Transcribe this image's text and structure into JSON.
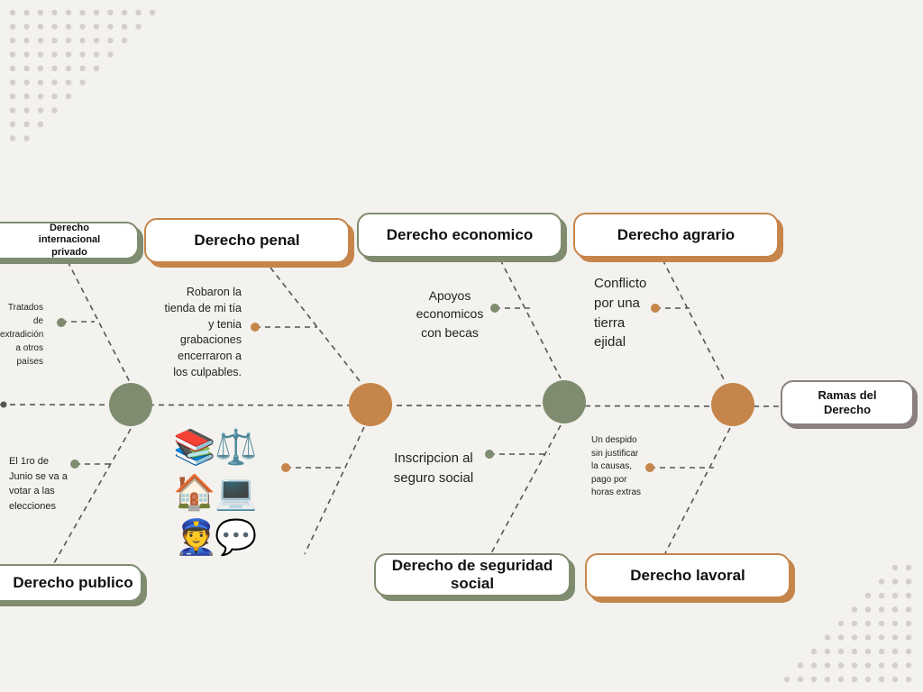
{
  "spine_label": "Ramas del Derecho",
  "branches": {
    "internacional": "Derecho internacional privado",
    "penal": "Derecho penal",
    "economico": "Derecho economico",
    "agrario": "Derecho agrario",
    "publico": "Derecho publico",
    "seguridad": "Derecho de seguridad social",
    "lavoral": "Derecho lavoral"
  },
  "notes": {
    "tratados": "Tratados de extradición a otros países",
    "robaron": "Robaron la tienda de mi tía y tenia grabaciones encerraron a los culpables.",
    "apoyos": "Apoyos economicos con becas",
    "conflicto": "Conflicto por una tierra ejidal",
    "junio": "El 1ro de Junio se va a votar a las elecciones",
    "inscripcion": "Inscripcion al seguro social",
    "despido": "Un despido sin justificar la causas, pago por horas extras"
  },
  "emojis": {
    "books": "📚",
    "scales": "⚖️",
    "house": "🏠",
    "laptop": "💻",
    "police": "👮",
    "speech": "💬"
  },
  "colors": {
    "green": "#7f8c70",
    "orange": "#c6854a",
    "line": "#555555",
    "background": "#f4f2ee"
  }
}
